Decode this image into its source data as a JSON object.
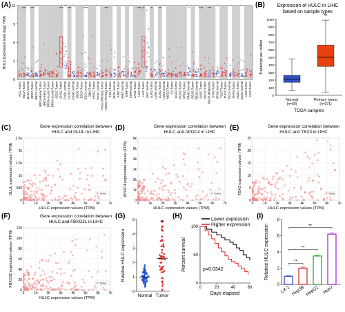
{
  "panels": {
    "A": {
      "label": "(A)",
      "ylabel": "HULC Expression level (log2 TPM)",
      "yticks": [
        "0",
        "3",
        "6",
        "9",
        "12"
      ],
      "cats": [
        "ACC.Tumor",
        "BLCA.Tumor",
        "BLCA.Normal",
        "BRCA.Tumor",
        "BRCA.Normal",
        "BRCA-Basal.Tumor",
        "BRCA-Her2.Tumor",
        "BRCA-LumA.Tumor",
        "BRCA-LumB.Tumor",
        "CESC.Tumor",
        "CHOL.Tumor",
        "CHOL.Normal",
        "COAD.Tumor",
        "COAD.Normal",
        "DLBC.Tumor",
        "ESCA.Tumor",
        "ESCA.Normal",
        "GBM.Tumor",
        "HNSC.Tumor",
        "HNSC.Normal",
        "HNSC-HPVpos.Tumor",
        "HNSC-HPVneg.Tumor",
        "KICH.Tumor",
        "KICH.Normal",
        "KIRC.Tumor",
        "KIRC.Normal",
        "KIRP.Tumor",
        "KIRP.Normal",
        "LAML.Tumor",
        "LGG.Tumor",
        "LIHC.Tumor",
        "LIHC.Normal",
        "LUAD.Tumor",
        "LUAD.Normal",
        "LUSC.Tumor",
        "LUSC.Normal",
        "MESO.Tumor",
        "OV.Tumor",
        "PAAD.Tumor",
        "PCPG.Tumor",
        "PRAD.Tumor",
        "PRAD.Normal",
        "READ.Tumor",
        "READ.Normal",
        "SARC.Tumor",
        "SKCM.Tumor",
        "SKCM.Metastasis",
        "STAD.Tumor",
        "STAD.Normal",
        "TGCT.Tumor",
        "THCA.Tumor",
        "THCA.Normal",
        "THYM.Tumor",
        "UCEC.Tumor",
        "UCEC.Normal",
        "UCS.Tumor",
        "UVM.Tumor"
      ],
      "stars": [
        "***",
        "***",
        "***",
        "***",
        "***",
        "***",
        "***",
        "*",
        "*",
        "**",
        "*",
        "***",
        "***"
      ]
    },
    "B": {
      "label": "(B)",
      "title": "Expression of HULC in LIHC based on sample types",
      "ylabel": "Transcript per million",
      "xlabel": "TCGA samples",
      "yticks": [
        "0",
        "100",
        "200",
        "300",
        "400",
        "500",
        "600",
        "700",
        "800",
        "900",
        "1000"
      ],
      "groups": [
        {
          "name": "Normal",
          "n": "(n=50)"
        },
        {
          "name": "Primary tumor",
          "n": "(n=371)"
        }
      ],
      "sig": "**"
    },
    "C": {
      "label": "(C)",
      "title": "Gene expression correlation between HULC and GLUL in LIHC",
      "ylabel": "GLUL expression values (TPM)"
    },
    "D": {
      "label": "(D)",
      "title": "Gene expression correlation between HULC and APOC4 in LIHC",
      "ylabel": "APOC4 expression values (TPM)"
    },
    "E": {
      "label": "(E)",
      "title": "Gene expression correlation between HULC and TBX3 in LIHC",
      "ylabel": "TBX3 expression values (TPM)"
    },
    "F": {
      "label": "(F)",
      "title": "Gene expression correlation between HULC and FBXO31 in LIHC",
      "ylabel": "FBXO31 expression values (TPM)"
    },
    "G": {
      "label": "(G)",
      "ylabel": "Relative HULC expression",
      "yticks": [
        "0",
        "1",
        "2",
        "3",
        "4",
        "5"
      ],
      "cats": [
        "Normal",
        "Tumor"
      ],
      "sig": "**"
    },
    "H": {
      "label": "(H)",
      "ylabel": "Percent survival",
      "xlabel": "Days elapsed",
      "yticks": [
        "0",
        "50",
        "100"
      ],
      "xticks": [
        "0",
        "20",
        "40",
        "60"
      ],
      "legend": [
        "Lower expression",
        "Higher expression"
      ],
      "pval": "p=0.0342",
      "colors": {
        "low": "#000000",
        "high": "#e02020"
      }
    },
    "I": {
      "label": "(I)",
      "ylabel": "Relative HULC expression",
      "yticks": [
        "0",
        "2",
        "4",
        "6",
        "8"
      ],
      "cats": [
        "LX-2",
        "Hep3B",
        "HepG2",
        "Huh7"
      ],
      "sigs": [
        "**",
        "**",
        "**"
      ]
    }
  },
  "scatter_common": {
    "xlabel": "HULC expression values (TPM)",
    "legend": "Tumor",
    "xticks": [
      "0",
      "1k",
      "2k",
      "3k",
      "4k",
      "5k",
      "6k",
      "7k"
    ]
  },
  "chart_data": [
    {
      "panel": "A",
      "type": "box",
      "ylim": [
        0,
        12
      ],
      "title": "",
      "ylabel": "HULC Expression level (log2 TPM)"
    },
    {
      "panel": "B",
      "type": "box",
      "categories": [
        "Normal",
        "Primary tumor"
      ],
      "box": [
        {
          "q1": 170,
          "median": 210,
          "q3": 260,
          "whisker": [
            60,
            480
          ]
        },
        {
          "q1": 380,
          "median": 500,
          "q3": 660,
          "whisker": [
            40,
            990
          ]
        }
      ],
      "ylim": [
        0,
        1000
      ],
      "xlabel": "TCGA samples",
      "ylabel": "Transcript per million"
    },
    {
      "panel": "C",
      "type": "scatter",
      "ylim": [
        0,
        2500
      ],
      "yticks": [
        "0",
        "500",
        "1k",
        "1.5k",
        "2k",
        "2.5k"
      ],
      "xlim": [
        0,
        7000
      ]
    },
    {
      "panel": "D",
      "type": "scatter",
      "ylim": [
        0,
        6000
      ],
      "yticks": [
        "0",
        "1k",
        "2k",
        "3k",
        "4k",
        "5k",
        "6k"
      ],
      "xlim": [
        0,
        7000
      ]
    },
    {
      "panel": "E",
      "type": "scatter",
      "ylim": [
        0,
        25
      ],
      "yticks": [
        "0",
        "5",
        "10",
        "15",
        "20",
        "25"
      ],
      "xlim": [
        0,
        7000
      ]
    },
    {
      "panel": "F",
      "type": "scatter",
      "ylim": [
        0,
        120
      ],
      "yticks": [
        "0",
        "20",
        "40",
        "60",
        "80",
        "100",
        "120"
      ],
      "xlim": [
        0,
        7000
      ]
    },
    {
      "panel": "G",
      "type": "scatter-dot",
      "categories": [
        "Normal",
        "Tumor"
      ],
      "means": [
        1.0,
        2.3
      ],
      "sd": [
        0.35,
        1.1
      ],
      "ylim": [
        0,
        5
      ]
    },
    {
      "panel": "H",
      "type": "survival",
      "xlim": [
        0,
        60
      ],
      "ylim": [
        0,
        100
      ],
      "series": [
        {
          "name": "Lower expression",
          "x": [
            0,
            8,
            14,
            20,
            26,
            30,
            36,
            40,
            44,
            48,
            52,
            56,
            60
          ],
          "y": [
            100,
            95,
            90,
            85,
            80,
            76,
            72,
            68,
            62,
            58,
            50,
            45,
            40
          ]
        },
        {
          "name": "Higher expression",
          "x": [
            0,
            6,
            10,
            14,
            18,
            22,
            26,
            30,
            34,
            38,
            42,
            46,
            50,
            54,
            58
          ],
          "y": [
            100,
            92,
            85,
            78,
            70,
            62,
            55,
            48,
            42,
            38,
            35,
            30,
            25,
            20,
            15
          ]
        }
      ]
    },
    {
      "panel": "I",
      "type": "bar",
      "categories": [
        "LX-2",
        "Hep3B",
        "HepG2",
        "Huh7"
      ],
      "values": [
        1.0,
        2.0,
        3.5,
        6.2
      ],
      "colors": [
        "#2f3fbf",
        "#d02020",
        "#20a020",
        "#a020c0"
      ],
      "ylim": [
        0,
        8
      ]
    }
  ]
}
